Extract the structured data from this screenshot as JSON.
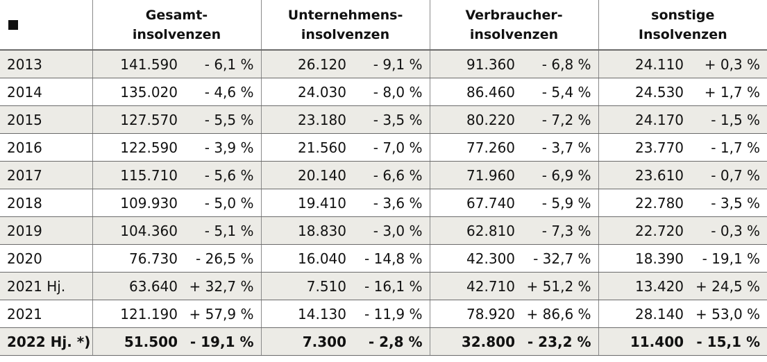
{
  "header": {
    "corner_icon": "black-square",
    "groups": [
      {
        "line1": "Gesamt-",
        "line2": "insolvenzen"
      },
      {
        "line1": "Unternehmens-",
        "line2": "insolvenzen"
      },
      {
        "line1": "Verbraucher-",
        "line2": "insolvenzen"
      },
      {
        "line1": "sonstige",
        "line2": "Insolvenzen"
      }
    ]
  },
  "rows": [
    {
      "year": "2013",
      "cells": [
        "141.590",
        "- 6,1 %",
        "26.120",
        "- 9,1 %",
        "91.360",
        "- 6,8 %",
        "24.110",
        "+ 0,3 %"
      ]
    },
    {
      "year": "2014",
      "cells": [
        "135.020",
        "- 4,6 %",
        "24.030",
        "- 8,0 %",
        "86.460",
        "- 5,4 %",
        "24.530",
        "+ 1,7 %"
      ]
    },
    {
      "year": "2015",
      "cells": [
        "127.570",
        "- 5,5 %",
        "23.180",
        "- 3,5 %",
        "80.220",
        "- 7,2 %",
        "24.170",
        "- 1,5 %"
      ]
    },
    {
      "year": "2016",
      "cells": [
        "122.590",
        "- 3,9 %",
        "21.560",
        "- 7,0 %",
        "77.260",
        "- 3,7 %",
        "23.770",
        "- 1,7 %"
      ]
    },
    {
      "year": "2017",
      "cells": [
        "115.710",
        "- 5,6 %",
        "20.140",
        "- 6,6 %",
        "71.960",
        "- 6,9 %",
        "23.610",
        "- 0,7 %"
      ]
    },
    {
      "year": "2018",
      "cells": [
        "109.930",
        "- 5,0 %",
        "19.410",
        "- 3,6 %",
        "67.740",
        "- 5,9 %",
        "22.780",
        "- 3,5 %"
      ]
    },
    {
      "year": "2019",
      "cells": [
        "104.360",
        "- 5,1 %",
        "18.830",
        "- 3,0 %",
        "62.810",
        "- 7,3 %",
        "22.720",
        "- 0,3 %"
      ]
    },
    {
      "year": "2020",
      "cells": [
        "76.730",
        "- 26,5 %",
        "16.040",
        "- 14,8 %",
        "42.300",
        "- 32,7 %",
        "18.390",
        "- 19,1 %"
      ]
    },
    {
      "year": "2021 Hj.",
      "cells": [
        "63.640",
        "+ 32,7 %",
        "7.510",
        "- 16,1 %",
        "42.710",
        "+ 51,2 %",
        "13.420",
        "+ 24,5 %"
      ]
    },
    {
      "year": "2021",
      "cells": [
        "121.190",
        "+ 57,9 %",
        "14.130",
        "- 11,9 %",
        "78.920",
        "+ 86,6 %",
        "28.140",
        "+ 53,0 %"
      ]
    },
    {
      "year": "2022 Hj. *)",
      "cells": [
        "51.500",
        "- 19,1 %",
        "7.300",
        "- 2,8 %",
        "32.800",
        "- 23,2 %",
        "11.400",
        "- 15,1 %"
      ]
    }
  ],
  "style": {
    "shade_color": "#ecebe6"
  }
}
